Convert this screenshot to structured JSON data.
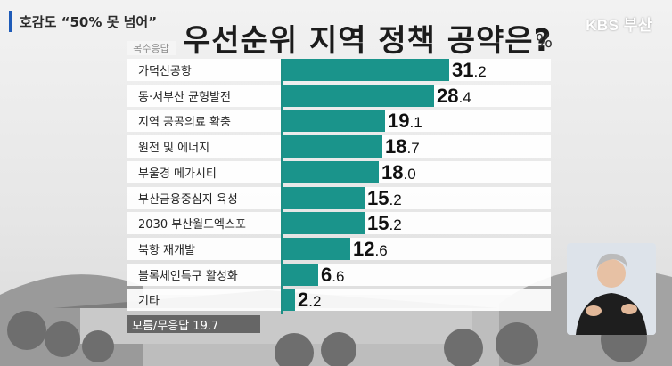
{
  "header": {
    "program_tag": "호감도 “50% 못 넘어”",
    "logo": "KBS 부산",
    "title": "우선순위 지역 정책 공약은?",
    "unit": "%",
    "subtag": "복수응답"
  },
  "footer": {
    "no_response_label": "모름/무응답 19.7"
  },
  "chart_data": {
    "type": "bar",
    "orientation": "horizontal",
    "title": "우선순위 지역 정책 공약은?",
    "unit": "%",
    "categories": [
      "가덕신공항",
      "동·서부산 균형발전",
      "지역 공공의료 확충",
      "원전 및 에너지",
      "부울경 메가시티",
      "부산금융중심지 육성",
      "2030 부산월드엑스포",
      "북항 재개발",
      "블록체인특구 활성화",
      "기타"
    ],
    "values": [
      31.2,
      28.4,
      19.1,
      18.7,
      18.0,
      15.2,
      15.2,
      12.6,
      6.6,
      2.2
    ],
    "value_labels": [
      {
        "int": "31",
        "dec": ".2"
      },
      {
        "int": "28",
        "dec": ".4"
      },
      {
        "int": "19",
        "dec": ".1"
      },
      {
        "int": "18",
        "dec": ".7"
      },
      {
        "int": "18",
        "dec": ".0"
      },
      {
        "int": "15",
        "dec": ".2"
      },
      {
        "int": "15",
        "dec": ".2"
      },
      {
        "int": "12",
        "dec": ".6"
      },
      {
        "int": "6",
        "dec": ".6"
      },
      {
        "int": "2",
        "dec": ".2"
      }
    ],
    "xlim": [
      0,
      31.2
    ],
    "bar_color": "#1a948b",
    "grid": false,
    "legend": "none"
  }
}
